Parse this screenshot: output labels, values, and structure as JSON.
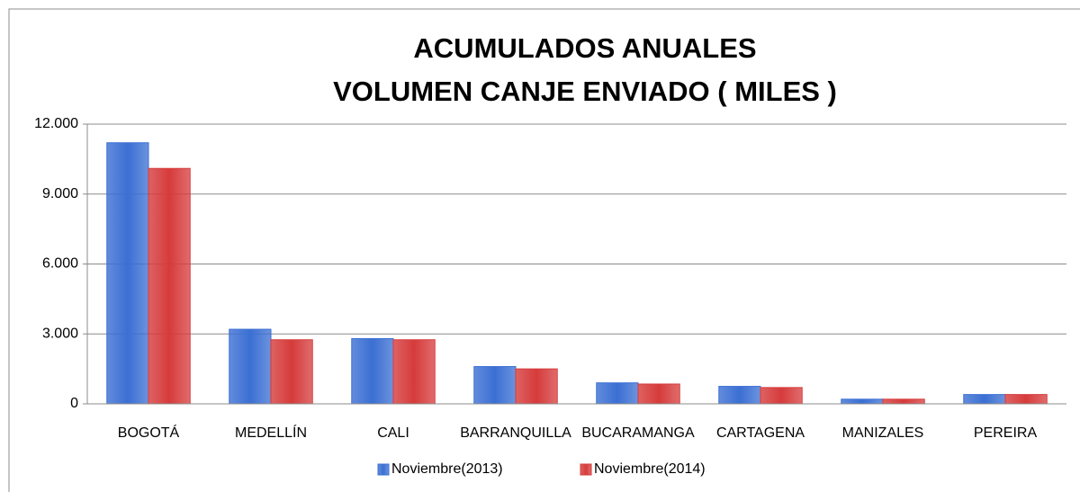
{
  "chart_data": {
    "type": "bar",
    "title": [
      "ACUMULADOS  ANUALES",
      "VOLUMEN CANJE ENVIADO  ( MILES )"
    ],
    "categories": [
      "BOGOTÁ",
      "MEDELLÍN",
      "CALI",
      "BARRANQUILLA",
      "BUCARAMANGA",
      "CARTAGENA",
      "MANIZALES",
      "PEREIRA"
    ],
    "series": [
      {
        "name": "Noviembre(2013)",
        "color": "#3b6fd3",
        "values": [
          11200,
          3200,
          2800,
          1600,
          900,
          750,
          200,
          400
        ]
      },
      {
        "name": "Noviembre(2014)",
        "color": "#d63b3b",
        "values": [
          10100,
          2750,
          2750,
          1500,
          850,
          700,
          200,
          400
        ]
      }
    ],
    "ylim": [
      0,
      12000
    ],
    "yticks": [
      0,
      {
        "value": 3000,
        "label": "3.000"
      },
      {
        "value": 6000,
        "label": "6.000"
      },
      {
        "value": 9000,
        "label": "9.000"
      },
      {
        "value": 12000,
        "label": "12.000"
      }
    ],
    "grid": true,
    "legend": "bottom"
  }
}
